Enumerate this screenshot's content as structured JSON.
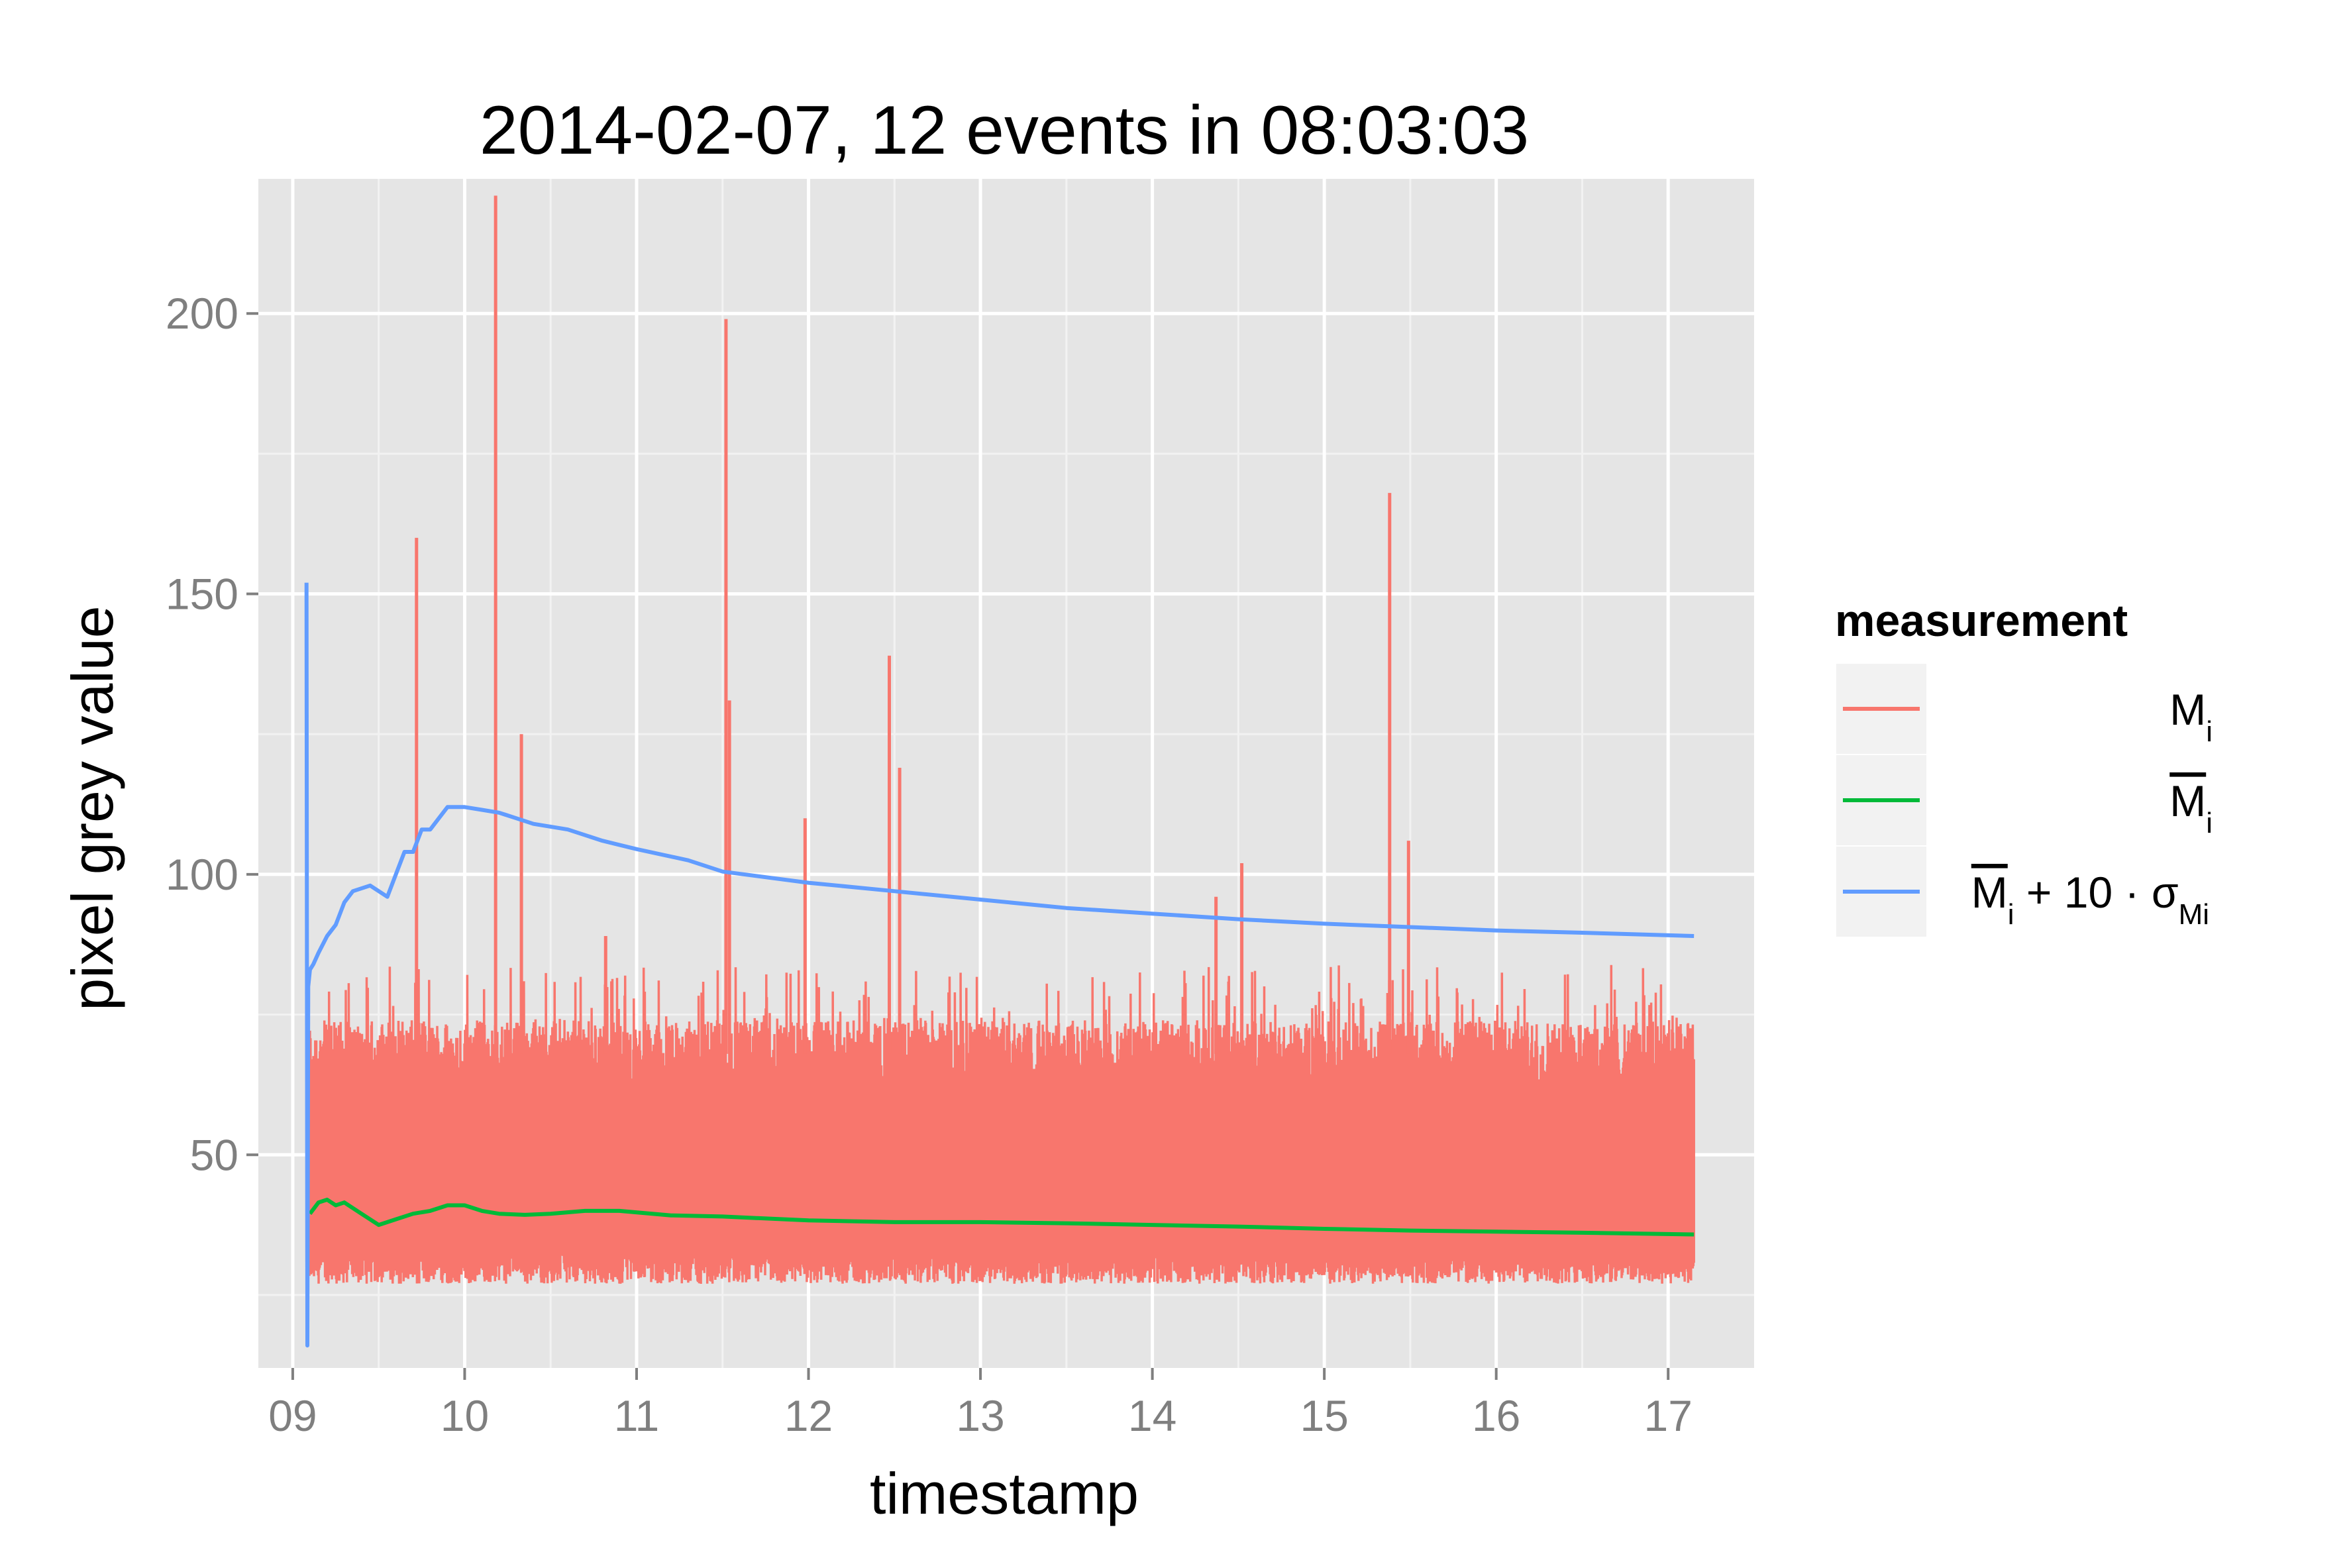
{
  "chart_data": {
    "type": "line",
    "title": "2014-02-07, 12 events in 08:03:03",
    "xlabel": "timestamp",
    "ylabel": "pixel grey value",
    "xlim": [
      8.8,
      17.5
    ],
    "ylim": [
      12,
      224
    ],
    "x_ticks": [
      9,
      10,
      11,
      12,
      13,
      14,
      15,
      16,
      17
    ],
    "x_tick_labels": [
      "09",
      "10",
      "11",
      "12",
      "13",
      "14",
      "15",
      "16",
      "17"
    ],
    "y_ticks": [
      50,
      100,
      150,
      200
    ],
    "y_tick_labels": [
      "50",
      "100",
      "150",
      "200"
    ],
    "grid": true,
    "legend": {
      "title": "measurement",
      "position": "right",
      "entries": [
        {
          "label": "M",
          "sub": "i",
          "overline": false,
          "color": "#F8766D"
        },
        {
          "label": "M",
          "sub": "i",
          "overline": true,
          "color": "#00BA38"
        },
        {
          "label": "M",
          "sub": "i",
          "overline": true,
          "expr": "+ 10 · σ",
          "expr_sub": "Mi",
          "color": "#619CFF"
        }
      ]
    },
    "series": [
      {
        "name": "M_i",
        "color": "#F8766D",
        "x_range": [
          9.08,
          17.15
        ],
        "band_low": 30,
        "band_high": 68,
        "spikes": [
          {
            "x": 9.72,
            "y": 160
          },
          {
            "x": 10.18,
            "y": 221
          },
          {
            "x": 10.33,
            "y": 125
          },
          {
            "x": 10.82,
            "y": 89
          },
          {
            "x": 11.52,
            "y": 199
          },
          {
            "x": 11.54,
            "y": 131
          },
          {
            "x": 11.98,
            "y": 110
          },
          {
            "x": 12.47,
            "y": 139
          },
          {
            "x": 12.53,
            "y": 119
          },
          {
            "x": 14.37,
            "y": 96
          },
          {
            "x": 14.52,
            "y": 102
          },
          {
            "x": 15.38,
            "y": 168
          },
          {
            "x": 15.49,
            "y": 106
          }
        ]
      },
      {
        "name": "mean M_i",
        "color": "#00BA38",
        "x": [
          9.1,
          9.15,
          9.2,
          9.25,
          9.3,
          9.4,
          9.5,
          9.6,
          9.7,
          9.8,
          9.9,
          10.0,
          10.1,
          10.2,
          10.35,
          10.5,
          10.7,
          10.9,
          11.2,
          11.5,
          12.0,
          12.5,
          13.0,
          13.5,
          14.0,
          14.5,
          15.0,
          15.5,
          16.0,
          16.5,
          17.15
        ],
        "values": [
          39.5,
          41.5,
          42,
          41,
          41.5,
          39.5,
          37.5,
          38.5,
          39.5,
          40,
          41,
          41,
          40,
          39.5,
          39.3,
          39.5,
          40,
          40,
          39.2,
          39,
          38.3,
          38,
          38,
          37.8,
          37.5,
          37.2,
          36.8,
          36.5,
          36.3,
          36.1,
          35.8
        ]
      },
      {
        "name": "mean M_i + 10 · sigma_Mi",
        "color": "#619CFF",
        "x": [
          9.08,
          9.085,
          9.09,
          9.1,
          9.12,
          9.15,
          9.2,
          9.25,
          9.3,
          9.35,
          9.45,
          9.55,
          9.6,
          9.65,
          9.7,
          9.75,
          9.8,
          9.85,
          9.9,
          9.95,
          10.0,
          10.1,
          10.2,
          10.3,
          10.4,
          10.6,
          10.8,
          11.0,
          11.3,
          11.5,
          12.0,
          12.5,
          13.0,
          13.5,
          14.0,
          14.5,
          15.0,
          15.5,
          16.0,
          16.5,
          17.15
        ],
        "values": [
          152,
          16,
          80,
          83,
          84,
          86,
          89,
          91,
          95,
          97,
          98,
          96,
          100,
          104,
          104,
          108,
          108,
          110,
          112,
          112,
          112,
          111.5,
          111,
          110,
          109,
          108,
          106,
          104.5,
          102.5,
          100.5,
          98.5,
          97,
          95.5,
          94,
          93,
          92,
          91.2,
          90.6,
          90,
          89.6,
          89
        ]
      }
    ]
  }
}
